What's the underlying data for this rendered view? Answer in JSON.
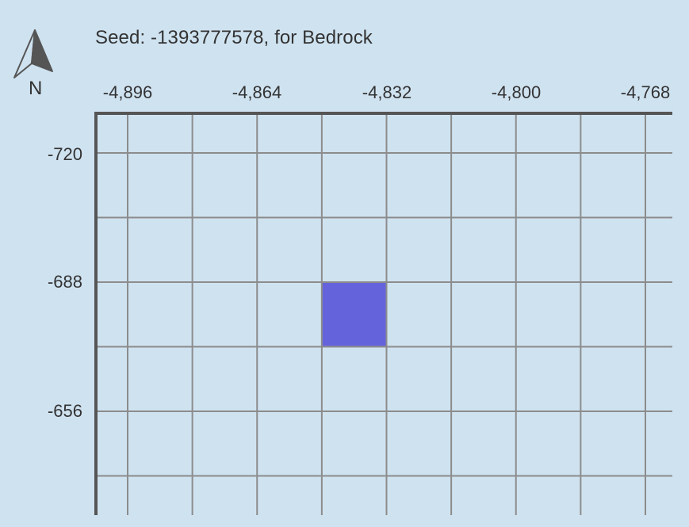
{
  "header": {
    "seed_text": "Seed: -1393777578, for Bedrock"
  },
  "compass": {
    "icon": "north-arrow-icon",
    "label": "N"
  },
  "axes": {
    "x_ticks": [
      "-4,896",
      "-4,864",
      "-4,832",
      "-4,800",
      "-4,768"
    ],
    "y_ticks": [
      "-720",
      "-688",
      "-656"
    ],
    "x_tick_values": [
      -4896,
      -4864,
      -4832,
      -4800,
      -4768
    ],
    "y_tick_values": [
      -720,
      -688,
      -656
    ],
    "cell_size_blocks": 16
  },
  "highlight": {
    "x_from": -4848,
    "x_to": -4832,
    "z_from": -688,
    "z_to": -672,
    "color": "#6563dc"
  },
  "colors": {
    "background": "#cfe2f0",
    "grid_line": "#8c8c8c",
    "axis_line": "#555555",
    "text": "#333333"
  }
}
